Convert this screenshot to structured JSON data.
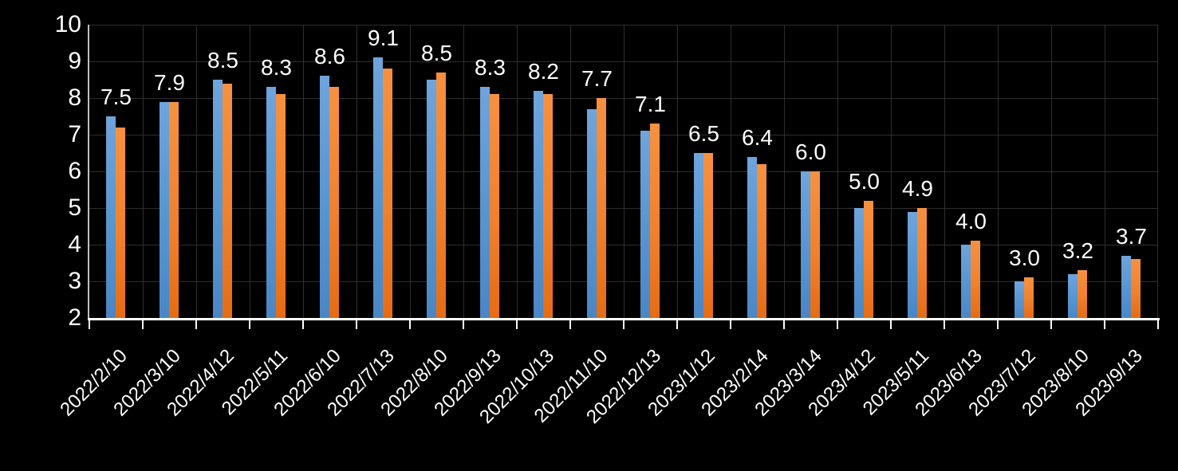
{
  "chart_data": {
    "type": "bar",
    "title": "",
    "xlabel": "",
    "ylabel": "",
    "categories": [
      "2022/2/10",
      "2022/3/10",
      "2022/4/12",
      "2022/5/11",
      "2022/6/10",
      "2022/7/13",
      "2022/8/10",
      "2022/9/13",
      "2022/10/13",
      "2022/11/10",
      "2022/12/13",
      "2023/1/12",
      "2023/2/14",
      "2023/3/14",
      "2023/4/12",
      "2023/5/11",
      "2023/6/13",
      "2023/7/12",
      "2023/8/10",
      "2023/9/13"
    ],
    "series": [
      {
        "name": "blue-series",
        "color_top": "#6FA4DC",
        "color_bottom": "#4A86C6",
        "values": [
          7.5,
          7.9,
          8.5,
          8.3,
          8.6,
          9.1,
          8.5,
          8.3,
          8.2,
          7.7,
          7.1,
          6.5,
          6.4,
          6.0,
          5.0,
          4.9,
          4.0,
          3.0,
          3.2,
          3.7
        ]
      },
      {
        "name": "orange-series",
        "color_top": "#F69140",
        "color_bottom": "#E56C13",
        "values": [
          7.2,
          7.9,
          8.4,
          8.1,
          8.3,
          8.8,
          8.7,
          8.1,
          8.1,
          8.0,
          7.3,
          6.5,
          6.2,
          6.0,
          5.2,
          5.0,
          4.1,
          3.1,
          3.3,
          3.6
        ]
      }
    ],
    "data_labels": [
      "7.5",
      "7.9",
      "8.5",
      "8.3",
      "8.6",
      "9.1",
      "8.5",
      "8.3",
      "8.2",
      "7.7",
      "7.1",
      "6.5",
      "6.4",
      "6.0",
      "5.0",
      "4.9",
      "4.0",
      "3.0",
      "3.2",
      "3.7"
    ],
    "data_labels_series": "blue-series",
    "ylim": [
      2,
      10
    ],
    "yticks": [
      10,
      9,
      8,
      7,
      6,
      5,
      4,
      3,
      2
    ],
    "grid": true,
    "legend": "none",
    "background_color": "#000000",
    "text_color": "#FFFFFF",
    "gridline_color": "#2E2E2E",
    "axis_line_color": "#FFFFFF"
  }
}
